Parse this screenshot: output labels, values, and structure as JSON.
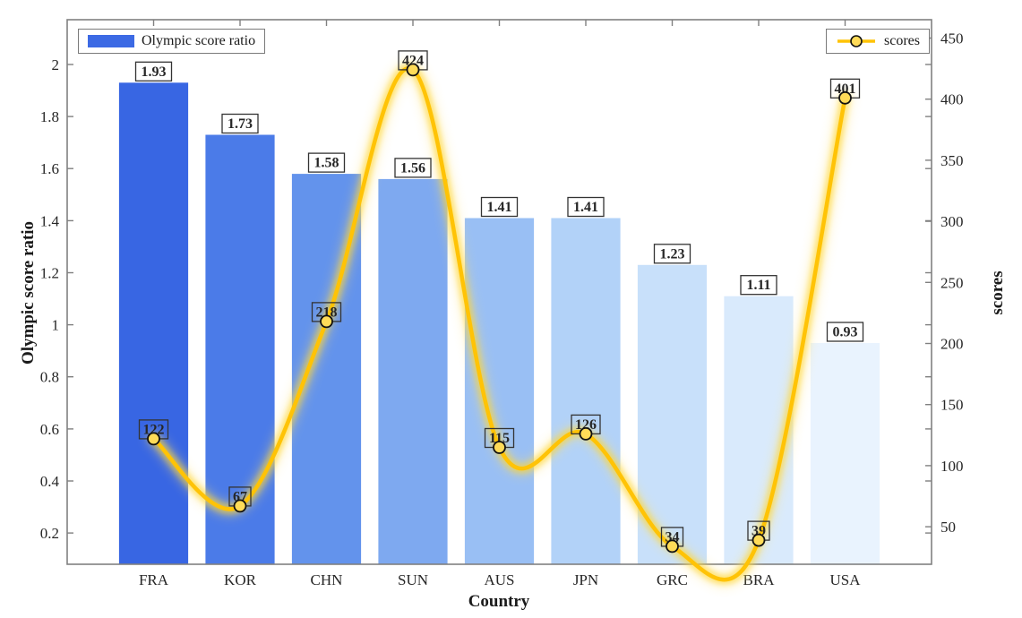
{
  "figure": {
    "background": "#ffffff",
    "axis_color": "#808080",
    "tick_text_color": "#262626",
    "label_box_border": "#333333"
  },
  "legend_bar": {
    "label": "Olympic score ratio",
    "swatch_color": "#3C6AE4"
  },
  "legend_line": {
    "label": "scores",
    "line_color": "#FFC306",
    "marker_fill": "#FFDB58",
    "marker_edge": "#111111"
  },
  "chart_data": {
    "type": "bar+line combo",
    "title": "",
    "xlabel": "Country",
    "categories": [
      "FRA",
      "KOR",
      "CHN",
      "SUN",
      "AUS",
      "JPN",
      "GRC",
      "BRA",
      "USA"
    ],
    "series": [
      {
        "name": "Olympic score ratio",
        "type": "bar",
        "axis": "left",
        "values": [
          1.93,
          1.73,
          1.58,
          1.56,
          1.41,
          1.41,
          1.23,
          1.11,
          0.93
        ],
        "value_labels": [
          "1.93",
          "1.73",
          "1.58",
          "1.56",
          "1.41",
          "1.41",
          "1.23",
          "1.11",
          "0.93"
        ],
        "bar_colors": [
          "#3866E3",
          "#4B7BE8",
          "#6393EC",
          "#7EA9F0",
          "#99BFF4",
          "#B2D2F8",
          "#C8E0FA",
          "#D9EAFC",
          "#E9F3FE"
        ]
      },
      {
        "name": "scores",
        "type": "line",
        "axis": "right",
        "values": [
          122,
          67,
          218,
          424,
          115,
          126,
          34,
          39,
          401
        ],
        "value_labels": [
          "122",
          "67",
          "218",
          "424",
          "115",
          "126",
          "34",
          "39",
          "401"
        ],
        "line_color": "#FFC306",
        "glow_color": "#FFD52B",
        "marker_fill": "#FFDB58",
        "marker_edge": "#111111"
      }
    ],
    "left_axis": {
      "label": "Olympic score ratio",
      "tick_labels": [
        "0.2",
        "0.4",
        "0.6",
        "0.8",
        "1",
        "1.2",
        "1.4",
        "1.6",
        "1.8",
        "2"
      ],
      "tick_values": [
        0.2,
        0.4,
        0.6,
        0.8,
        1,
        1.2,
        1.4,
        1.6,
        1.8,
        2
      ],
      "ylim": [
        0.08,
        2.172
      ]
    },
    "right_axis": {
      "label": "scores",
      "tick_labels": [
        "50",
        "100",
        "150",
        "200",
        "250",
        "300",
        "350",
        "400",
        "450"
      ],
      "tick_values": [
        50,
        100,
        150,
        200,
        250,
        300,
        350,
        400,
        450
      ],
      "ylim": [
        19.3,
        465
      ]
    },
    "legend_position": "bar legend top-left, line legend top-right",
    "grid": false
  }
}
